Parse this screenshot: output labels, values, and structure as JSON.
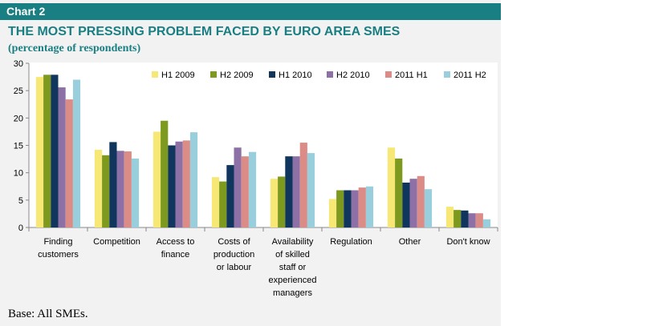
{
  "header": {
    "label": "Chart 2",
    "title": "THE MOST PRESSING PROBLEM FACED BY EURO AREA SMES",
    "subtitle": "(percentage of respondents)"
  },
  "footer": {
    "note": "Base: All SMEs."
  },
  "colors": {
    "header_bg": "#1a7f83",
    "panel_bg": "#f2f2f2"
  },
  "chart_data": {
    "type": "bar",
    "ylim": [
      0,
      30
    ],
    "yticks": [
      0,
      5,
      10,
      15,
      20,
      25,
      30
    ],
    "grid": false,
    "legend_position": "top-right",
    "categories": [
      [
        "Finding",
        "customers"
      ],
      [
        "Competition"
      ],
      [
        "Access to",
        "finance"
      ],
      [
        "Costs of",
        "production",
        "or labour"
      ],
      [
        "Availability",
        "of skilled",
        "staff or",
        "experienced",
        "managers"
      ],
      [
        "Regulation"
      ],
      [
        "Other"
      ],
      [
        "Don't know"
      ]
    ],
    "series": [
      {
        "name": "H1 2009",
        "color": "#f7e775",
        "values": [
          27.5,
          14.2,
          17.5,
          9.2,
          8.9,
          5.2,
          14.6,
          3.8
        ]
      },
      {
        "name": "H2 2009",
        "color": "#7d9a1e",
        "values": [
          27.9,
          13.2,
          19.5,
          8.4,
          9.3,
          6.8,
          12.6,
          3.2
        ]
      },
      {
        "name": "H1 2010",
        "color": "#10365e",
        "values": [
          27.9,
          15.6,
          15.0,
          11.4,
          13.0,
          6.8,
          8.2,
          3.1
        ]
      },
      {
        "name": "H2 2010",
        "color": "#8d71a6",
        "values": [
          25.6,
          14.0,
          15.7,
          14.6,
          13.0,
          6.8,
          8.9,
          2.6
        ]
      },
      {
        "name": "2011 H1",
        "color": "#dc8c86",
        "values": [
          23.4,
          13.9,
          15.9,
          13.0,
          15.5,
          7.3,
          9.4,
          2.6
        ]
      },
      {
        "name": "2011 H2",
        "color": "#99cfdd",
        "values": [
          27.0,
          12.6,
          17.4,
          13.8,
          13.6,
          7.5,
          7.0,
          1.5
        ]
      }
    ]
  }
}
